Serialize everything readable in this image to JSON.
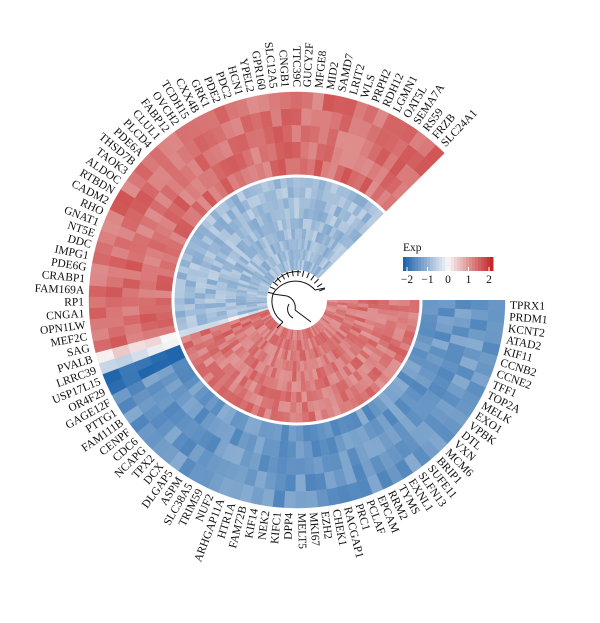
{
  "chart_data": {
    "type": "heatmap",
    "layout": "circular",
    "genes": [
      "TPRX1",
      "PRDM1",
      "KCNT2",
      "ATAD2",
      "KIF11",
      "CCNB2",
      "CCNE2",
      "TFF1",
      "TOP2A",
      "MELK",
      "EXO1",
      "VPBK",
      "DTL",
      "VXN",
      "MCM6",
      "BRIP1",
      "SUFE11",
      "SLFN13",
      "EXNL1",
      "TYMS",
      "RRM2",
      "EPCAM",
      "PCLAF",
      "PRC1",
      "RACGAP1",
      "CHEK1",
      "EZH2",
      "MKI67",
      "MELT5",
      "DPP4",
      "KIFC1",
      "NEK2",
      "KIF14",
      "FAM72B",
      "HTR1A",
      "ARHGAP11A",
      "NUF2",
      "TRIM59",
      "SLC38A5",
      "ASPM",
      "DLGAP5",
      "DCX",
      "TPX2",
      "NCAPG",
      "CDC6",
      "CENPF",
      "FAM111B",
      "PTTG1",
      "GAGE12F",
      "OR4F29",
      "USP17L15",
      "LRRC39",
      "PVALB",
      "SAG",
      "MEF2C",
      "OPN1LW",
      "CNGA1",
      "RP1",
      "FAM169A",
      "CRABP1",
      "PDE6G",
      "IMPG1",
      "DDC",
      "NT5E",
      "GNAT1",
      "RHO",
      "CADM2",
      "RTBDN",
      "ALDOC",
      "TAOK3",
      "THSD7B",
      "PDE6A",
      "PLCD4",
      "CLUL1",
      "FABP12",
      "OVCH2",
      "TCDH15",
      "CXX4B",
      "GRK1",
      "PDE2",
      "PDC2",
      "HCN1",
      "YPEL2",
      "GPR160",
      "SLC12A5",
      "CNGB1",
      "TTC39C",
      "GUCY2F",
      "MFGE8",
      "MID2",
      "SAMD7",
      "LRIT2",
      "WLS",
      "PRPH2",
      "RDH12",
      "LGMN1",
      "OAT5L",
      "SEMA7A",
      "RS59",
      "FRZB",
      "SLC24A1"
    ],
    "legend": {
      "title": "Exp",
      "ticks": [
        -2,
        -1,
        0,
        1,
        2
      ],
      "low_color": "#2166ac",
      "mid_color": "#f7f7f7",
      "high_color": "#c62828"
    },
    "groups": [
      {
        "genes_from": "TPRX1",
        "genes_to": "PVALB",
        "outer_level": -1.3,
        "inner_level": 1.2
      },
      {
        "genes_from": "SAG",
        "genes_to": "SLC24A1",
        "outer_level": 1.3,
        "inner_level": -0.8
      }
    ],
    "transition": {
      "genes": [
        "PVALB",
        "LRRC39",
        "USP17L15",
        "OR4F29"
      ],
      "outer_levels": [
        0.2,
        -0.3,
        -2.0,
        -1.9
      ],
      "inner_levels": [
        -0.2,
        1.3,
        1.3,
        1.3
      ]
    }
  }
}
